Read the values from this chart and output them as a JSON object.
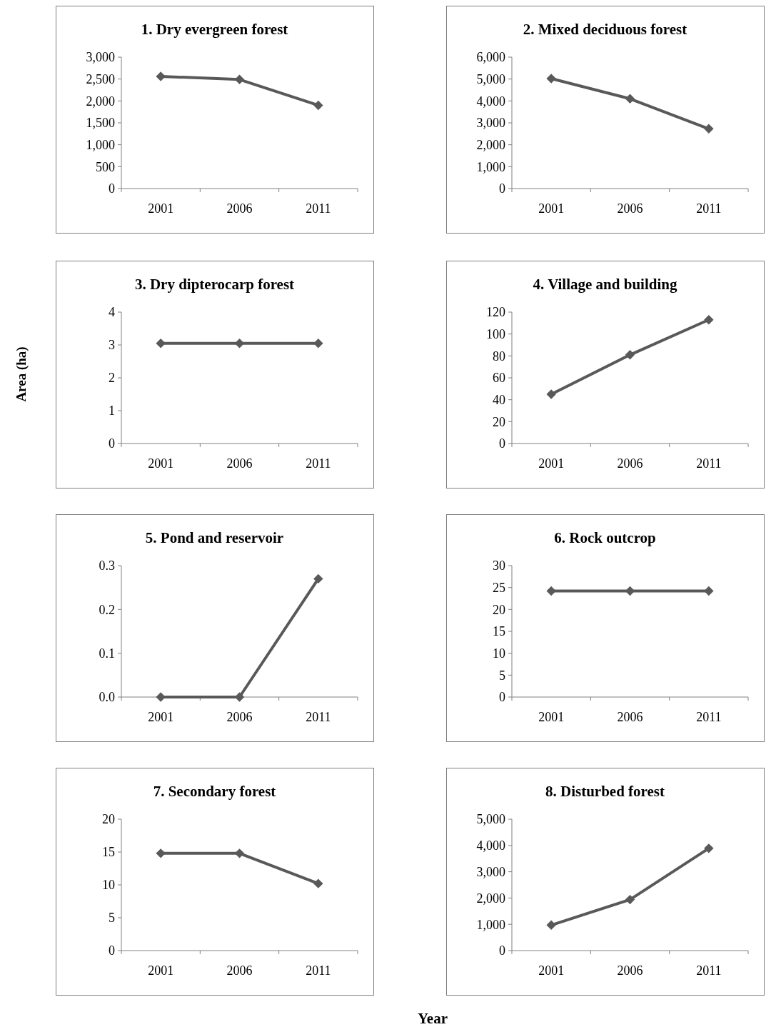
{
  "chart_data": [
    {
      "type": "line",
      "title": "1.  Dry evergreen forest",
      "categories": [
        "2001",
        "2006",
        "2011"
      ],
      "series": [
        {
          "color": "#595959",
          "values": [
            2560,
            2490,
            1900
          ]
        }
      ],
      "ylim": [
        0,
        3000
      ],
      "yticks": [
        0,
        500,
        {
          "value": 1000,
          "label": "1,000"
        },
        {
          "value": 1500,
          "label": "1,500"
        },
        {
          "value": 2000,
          "label": "2,000"
        },
        {
          "value": 2500,
          "label": "2,500"
        },
        {
          "value": 3000,
          "label": "3,000"
        }
      ],
      "marker": "diamond"
    },
    {
      "type": "line",
      "title": "2.  Mixed deciduous forest",
      "categories": [
        "2001",
        "2006",
        "2011"
      ],
      "series": [
        {
          "color": "#595959",
          "values": [
            5020,
            4100,
            2730
          ]
        }
      ],
      "ylim": [
        0,
        6000
      ],
      "yticks": [
        0,
        {
          "value": 1000,
          "label": "1,000"
        },
        {
          "value": 2000,
          "label": "2,000"
        },
        {
          "value": 3000,
          "label": "3,000"
        },
        {
          "value": 4000,
          "label": "4,000"
        },
        {
          "value": 5000,
          "label": "5,000"
        },
        {
          "value": 6000,
          "label": "6,000"
        }
      ],
      "marker": "diamond"
    },
    {
      "type": "line",
      "title": "3.  Dry dipterocarp forest",
      "ylabel": "Area (ha)",
      "categories": [
        "2001",
        "2006",
        "2011"
      ],
      "series": [
        {
          "color": "#595959",
          "values": [
            3.05,
            3.05,
            3.05
          ]
        }
      ],
      "ylim": [
        0,
        4
      ],
      "yticks": [
        0,
        1,
        2,
        3,
        4
      ],
      "marker": "diamond"
    },
    {
      "type": "line",
      "title": "4.  Village and building",
      "categories": [
        "2001",
        "2006",
        "2011"
      ],
      "series": [
        {
          "color": "#595959",
          "values": [
            45,
            81,
            113
          ]
        }
      ],
      "ylim": [
        0,
        120
      ],
      "yticks": [
        0,
        20,
        40,
        60,
        80,
        100,
        120
      ],
      "marker": "diamond"
    },
    {
      "type": "line",
      "title": "5.  Pond and reservoir",
      "categories": [
        "2001",
        "2006",
        "2011"
      ],
      "series": [
        {
          "color": "#595959",
          "values": [
            0,
            0,
            0.27
          ]
        }
      ],
      "ylim": [
        0,
        0.3
      ],
      "yticks": [
        {
          "value": 0,
          "label": "0.0"
        },
        0.1,
        0.2,
        0.3
      ],
      "marker": "diamond"
    },
    {
      "type": "line",
      "title": "6.  Rock outcrop",
      "categories": [
        "2001",
        "2006",
        "2011"
      ],
      "series": [
        {
          "color": "#595959",
          "values": [
            24.2,
            24.2,
            24.2
          ]
        }
      ],
      "ylim": [
        0,
        30
      ],
      "yticks": [
        0,
        5,
        10,
        15,
        20,
        25,
        30
      ],
      "marker": "diamond"
    },
    {
      "type": "line",
      "title": "7.  Secondary forest",
      "xlabel": "Year",
      "categories": [
        "2001",
        "2006",
        "2011"
      ],
      "series": [
        {
          "color": "#595959",
          "values": [
            14.8,
            14.8,
            10.2
          ]
        }
      ],
      "ylim": [
        0,
        20
      ],
      "yticks": [
        0,
        5,
        10,
        15,
        20
      ],
      "marker": "diamond"
    },
    {
      "type": "line",
      "title": "8.  Disturbed forest",
      "categories": [
        "2001",
        "2006",
        "2011"
      ],
      "series": [
        {
          "color": "#595959",
          "values": [
            970,
            1940,
            3890
          ]
        }
      ],
      "ylim": [
        0,
        5000
      ],
      "yticks": [
        0,
        {
          "value": 1000,
          "label": "1,000"
        },
        {
          "value": 2000,
          "label": "2,000"
        },
        {
          "value": 3000,
          "label": "3,000"
        },
        {
          "value": 4000,
          "label": "4,000"
        },
        {
          "value": 5000,
          "label": "5,000"
        }
      ],
      "marker": "diamond"
    }
  ]
}
